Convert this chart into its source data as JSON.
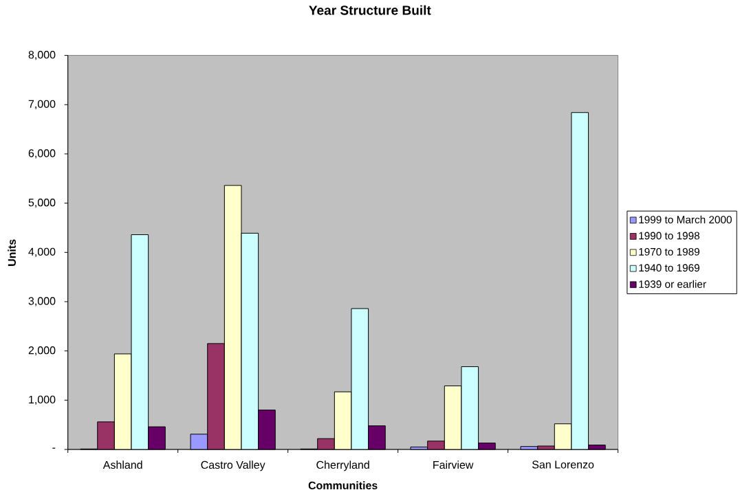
{
  "chart_data": {
    "type": "bar",
    "title": "Year Structure Built",
    "xlabel": "Communities",
    "ylabel": "Units",
    "categories": [
      "Ashland",
      "Castro Valley",
      "Cherryland",
      "Fairview",
      "San Lorenzo"
    ],
    "series": [
      {
        "name": "1999 to March 2000",
        "color": "#9999ff",
        "values": [
          10,
          310,
          10,
          50,
          60
        ]
      },
      {
        "name": "1990 to 1998",
        "color": "#993366",
        "values": [
          560,
          2150,
          220,
          170,
          70
        ]
      },
      {
        "name": "1970 to 1989",
        "color": "#ffffcc",
        "values": [
          1940,
          5360,
          1170,
          1290,
          520
        ]
      },
      {
        "name": "1940 to 1969",
        "color": "#ccffff",
        "values": [
          4360,
          4390,
          2860,
          1680,
          6840
        ]
      },
      {
        "name": "1939 or earlier",
        "color": "#660066",
        "values": [
          460,
          800,
          480,
          130,
          90
        ]
      }
    ],
    "ylim": [
      0,
      8000
    ],
    "yticks": [
      {
        "value": 0,
        "label": "-"
      },
      {
        "value": 1000,
        "label": "1,000"
      },
      {
        "value": 2000,
        "label": "2,000"
      },
      {
        "value": 3000,
        "label": "3,000"
      },
      {
        "value": 4000,
        "label": "4,000"
      },
      {
        "value": 5000,
        "label": "5,000"
      },
      {
        "value": 6000,
        "label": "6,000"
      },
      {
        "value": 7000,
        "label": "7,000"
      },
      {
        "value": 8000,
        "label": "8,000"
      }
    ],
    "legend": "right"
  }
}
